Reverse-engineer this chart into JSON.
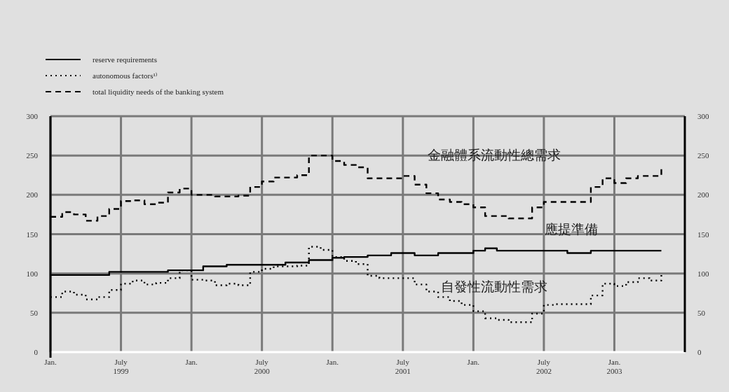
{
  "chart_data": {
    "type": "step",
    "x": [
      "1999-01",
      "1999-02",
      "1999-03",
      "1999-04",
      "1999-05",
      "1999-06",
      "1999-07",
      "1999-08",
      "1999-09",
      "1999-10",
      "1999-11",
      "1999-12",
      "2000-01",
      "2000-02",
      "2000-03",
      "2000-04",
      "2000-05",
      "2000-06",
      "2000-07",
      "2000-08",
      "2000-09",
      "2000-10",
      "2000-11",
      "2000-12",
      "2001-01",
      "2001-02",
      "2001-03",
      "2001-04",
      "2001-05",
      "2001-06",
      "2001-07",
      "2001-08",
      "2001-09",
      "2001-10",
      "2001-11",
      "2001-12",
      "2002-01",
      "2002-02",
      "2002-03",
      "2002-04",
      "2002-05",
      "2002-06",
      "2002-07",
      "2002-08",
      "2002-09",
      "2002-10",
      "2002-11",
      "2002-12",
      "2003-01",
      "2003-02",
      "2003-03",
      "2003-04",
      "2003-05"
    ],
    "series": [
      {
        "name": "reserve requirements",
        "color": "#000000",
        "line_style": "solid",
        "values": [
          98,
          98,
          98,
          98,
          98,
          102,
          102,
          102,
          102,
          102,
          104,
          104,
          104,
          109,
          109,
          111,
          111,
          111,
          111,
          111,
          114,
          114,
          117,
          117,
          120,
          121,
          121,
          123,
          123,
          126,
          126,
          123,
          123,
          126,
          126,
          126,
          129,
          132,
          129,
          129,
          129,
          129,
          129,
          129,
          126,
          126,
          129,
          129,
          129,
          129,
          129,
          129,
          129
        ]
      },
      {
        "name": "autonomous factors¹⁾",
        "color": "#000000",
        "line_style": "dotted",
        "values": [
          70,
          77,
          73,
          67,
          70,
          79,
          87,
          91,
          86,
          88,
          94,
          104,
          92,
          91,
          85,
          87,
          85,
          102,
          106,
          109,
          109,
          110,
          134,
          130,
          121,
          116,
          112,
          97,
          94,
          94,
          94,
          86,
          77,
          70,
          65,
          60,
          52,
          43,
          41,
          38,
          38,
          49,
          60,
          61,
          61,
          61,
          72,
          87,
          84,
          89,
          94,
          91,
          100
        ]
      },
      {
        "name": "total liquidity needs of the banking system",
        "color": "#000000",
        "line_style": "dashed",
        "values": [
          172,
          178,
          175,
          167,
          173,
          182,
          192,
          193,
          188,
          190,
          203,
          208,
          200,
          200,
          198,
          198,
          199,
          210,
          217,
          222,
          222,
          225,
          250,
          250,
          243,
          238,
          235,
          221,
          221,
          221,
          224,
          213,
          202,
          194,
          191,
          188,
          184,
          173,
          173,
          170,
          170,
          184,
          191,
          191,
          191,
          191,
          210,
          221,
          215,
          221,
          224,
          224,
          233
        ]
      }
    ],
    "xlim": [
      "1999-01",
      "2003-07"
    ],
    "xticks": [
      {
        "value": "1999-01",
        "label": "Jan."
      },
      {
        "value": "1999-07",
        "label": "July\n1999"
      },
      {
        "value": "2000-01",
        "label": "Jan."
      },
      {
        "value": "2000-07",
        "label": "July\n2000"
      },
      {
        "value": "2001-01",
        "label": "Jan."
      },
      {
        "value": "2001-07",
        "label": "July\n2001"
      },
      {
        "value": "2002-01",
        "label": "Jan."
      },
      {
        "value": "2002-07",
        "label": "July\n2002"
      },
      {
        "value": "2003-01",
        "label": "Jan.\n2003"
      }
    ],
    "ylim": [
      0,
      300
    ],
    "yticks": [
      0,
      50,
      100,
      150,
      200,
      250,
      300
    ],
    "y2lim": [
      0,
      300
    ],
    "y2ticks": [
      0,
      50,
      100,
      150,
      200,
      250,
      300
    ],
    "grid": true,
    "legend": "top left",
    "annotations": [
      "金融體系流動性總需求",
      "應提準備",
      "自發性流動性需求"
    ]
  }
}
